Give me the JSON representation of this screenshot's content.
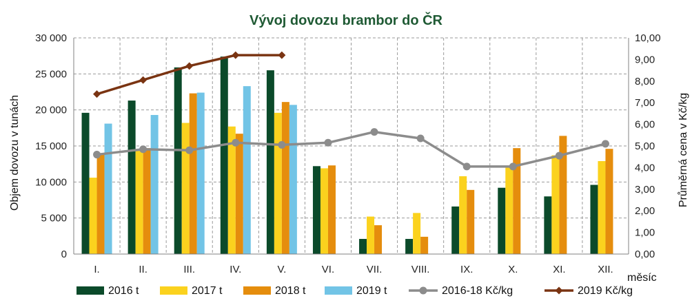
{
  "chart_data": {
    "type": "bar",
    "title": "Vývoj dovozu brambor do ČR",
    "ylabel": "Objem dovozu v tunách",
    "y2label": "Průměrná cena v Kč/kg",
    "xlabel": "měsíc",
    "categories": [
      "I.",
      "II.",
      "III.",
      "IV.",
      "V.",
      "VI.",
      "VII.",
      "VIII.",
      "IX.",
      "X.",
      "XI.",
      "XII."
    ],
    "ylim": [
      0,
      30000
    ],
    "y2lim": [
      0,
      10
    ],
    "yticks": [
      "0",
      "5 000",
      "10 000",
      "15 000",
      "20 000",
      "25 000",
      "30 000"
    ],
    "y2ticks": [
      "0,00",
      "1,00",
      "2,00",
      "3,00",
      "4,00",
      "5,00",
      "6,00",
      "7,00",
      "8,00",
      "9,00",
      "10,00"
    ],
    "grid": true,
    "legend_position": "bottom",
    "bar_series": [
      {
        "name": "2016 t",
        "color": "#0b4a2a",
        "values": [
          19600,
          21300,
          25900,
          27400,
          25500,
          12200,
          2100,
          2100,
          6600,
          9200,
          8000,
          9600
        ]
      },
      {
        "name": "2017 t",
        "color": "#fbd21e",
        "values": [
          10600,
          14600,
          18200,
          17700,
          19600,
          11900,
          5200,
          5700,
          10800,
          12100,
          13700,
          12900
        ]
      },
      {
        "name": "2018 t",
        "color": "#e58d0d",
        "values": [
          13800,
          14700,
          22300,
          16700,
          21100,
          12300,
          4000,
          2400,
          8900,
          14700,
          16400,
          14600
        ]
      },
      {
        "name": "2019 t",
        "color": "#72c4e6",
        "values": [
          18100,
          19300,
          22400,
          23300,
          20700,
          null,
          null,
          null,
          null,
          null,
          null,
          null
        ]
      }
    ],
    "line_series": [
      {
        "name": "2016-18 Kč/kg",
        "color": "#8c8c8c",
        "marker": "circle",
        "values": [
          4.6,
          4.85,
          4.8,
          5.15,
          5.05,
          5.15,
          5.65,
          5.35,
          4.05,
          4.05,
          4.55,
          5.1
        ]
      },
      {
        "name": "2019 Kč/kg",
        "color": "#7a3412",
        "marker": "diamond",
        "values": [
          7.4,
          8.05,
          8.7,
          9.2,
          9.2,
          null,
          null,
          null,
          null,
          null,
          null,
          null
        ]
      }
    ]
  }
}
